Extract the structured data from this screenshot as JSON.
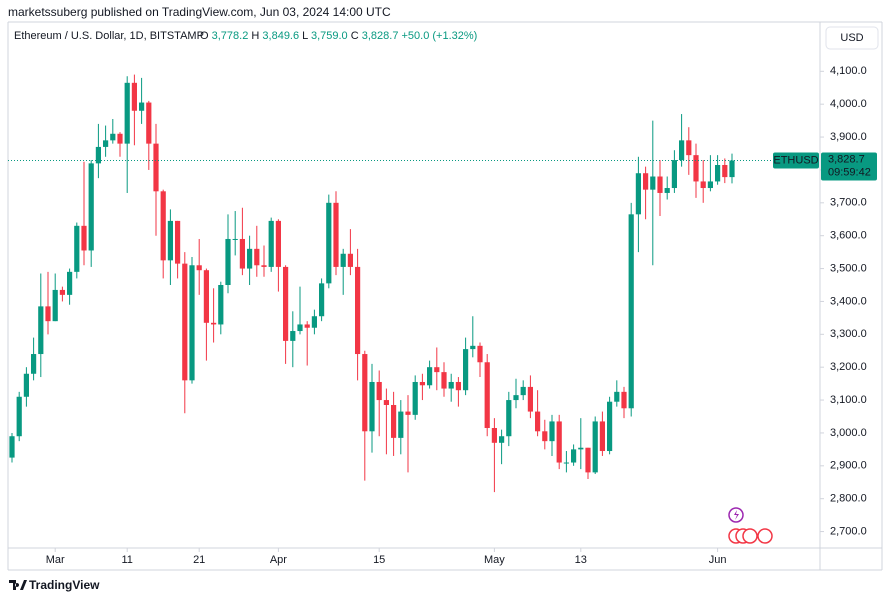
{
  "header": {
    "byline": "marketssuberg published on TradingView.com, Jun 03, 2024 14:00 UTC"
  },
  "footer": {
    "brand": "TradingView"
  },
  "chart_data": {
    "type": "candlestick",
    "title": "Ethereum / U.S. Dollar, 1D, BITSTAMP",
    "currency": "USD",
    "legend": {
      "o_label": "O",
      "o": "3,778.2",
      "h_label": "H",
      "h": "3,849.6",
      "l_label": "L",
      "l": "3,759.0",
      "c_label": "C",
      "c": "3,828.7",
      "change": "+50.0 (+1.32%)"
    },
    "price_tag": {
      "symbol": "ETHUSD",
      "price": "3,828.7",
      "countdown": "09:59:42"
    },
    "up_color": "#089981",
    "down_color": "#f23645",
    "categories": [
      "Feb 24",
      "Feb 25",
      "Feb 26",
      "Feb 27",
      "Feb 28",
      "Feb 29",
      "Mar 1",
      "Mar 2",
      "Mar 3",
      "Mar 4",
      "Mar 5",
      "Mar 6",
      "Mar 7",
      "Mar 8",
      "Mar 9",
      "Mar 10",
      "Mar 11",
      "Mar 12",
      "Mar 13",
      "Mar 14",
      "Mar 15",
      "Mar 16",
      "Mar 17",
      "Mar 18",
      "Mar 19",
      "Mar 20",
      "Mar 21",
      "Mar 22",
      "Mar 23",
      "Mar 24",
      "Mar 25",
      "Mar 26",
      "Mar 27",
      "Mar 28",
      "Mar 29",
      "Mar 30",
      "Mar 31",
      "Apr 1",
      "Apr 2",
      "Apr 3",
      "Apr 4",
      "Apr 5",
      "Apr 6",
      "Apr 7",
      "Apr 8",
      "Apr 9",
      "Apr 10",
      "Apr 11",
      "Apr 12",
      "Apr 13",
      "Apr 14",
      "Apr 15",
      "Apr 16",
      "Apr 17",
      "Apr 18",
      "Apr 19",
      "Apr 20",
      "Apr 21",
      "Apr 22",
      "Apr 23",
      "Apr 24",
      "Apr 25",
      "Apr 26",
      "Apr 27",
      "Apr 28",
      "Apr 29",
      "Apr 30",
      "May 1",
      "May 2",
      "May 3",
      "May 4",
      "May 5",
      "May 6",
      "May 7",
      "May 8",
      "May 9",
      "May 10",
      "May 11",
      "May 12",
      "May 13",
      "May 14",
      "May 15",
      "May 16",
      "May 17",
      "May 18",
      "May 19",
      "May 20",
      "May 21",
      "May 22",
      "May 23",
      "May 24",
      "May 25",
      "May 26",
      "May 27",
      "May 28",
      "May 29",
      "May 30",
      "May 31",
      "Jun 1",
      "Jun 2",
      "Jun 3"
    ],
    "open": [
      2925,
      2990,
      3110,
      3180,
      3240,
      3385,
      3340,
      3435,
      3420,
      3490,
      3630,
      3555,
      3820,
      3870,
      3890,
      3910,
      3880,
      4065,
      3980,
      4005,
      3880,
      3735,
      3525,
      3645,
      3515,
      3160,
      3510,
      3495,
      3335,
      3330,
      3450,
      3590,
      3590,
      3500,
      3560,
      3510,
      3505,
      3645,
      3505,
      3280,
      3310,
      3330,
      3320,
      3355,
      3455,
      3700,
      3505,
      3545,
      3505,
      3240,
      3005,
      3155,
      3100,
      3085,
      2985,
      3065,
      3055,
      3155,
      3145,
      3200,
      3185,
      3135,
      3155,
      3130,
      3255,
      3265,
      3215,
      3015,
      2970,
      2990,
      3100,
      3115,
      3140,
      3065,
      3005,
      2975,
      3035,
      2910,
      2910,
      2950,
      2955,
      2880,
      3035,
      2945,
      3095,
      3125,
      3075,
      3665,
      3790,
      3740,
      3780,
      3730,
      3745,
      3830,
      3890,
      3845,
      3765,
      3745,
      3765,
      3815,
      3778.2
    ],
    "high": [
      3000,
      3125,
      3200,
      3290,
      3485,
      3490,
      3485,
      3445,
      3500,
      3640,
      3825,
      3830,
      3940,
      3935,
      3955,
      3915,
      4085,
      4090,
      4080,
      4010,
      3940,
      3740,
      3680,
      3645,
      3550,
      3535,
      3590,
      3500,
      3440,
      3460,
      3665,
      3675,
      3685,
      3600,
      3630,
      3570,
      3655,
      3650,
      3510,
      3370,
      3445,
      3340,
      3375,
      3470,
      3725,
      3735,
      3560,
      3620,
      3560,
      3250,
      3210,
      3190,
      3135,
      3125,
      3100,
      3115,
      3175,
      3180,
      3220,
      3260,
      3215,
      3180,
      3170,
      3290,
      3355,
      3275,
      3240,
      3045,
      3010,
      3125,
      3165,
      3160,
      3175,
      3130,
      3040,
      3055,
      3055,
      2945,
      2965,
      3045,
      2955,
      3050,
      3065,
      3110,
      3160,
      3140,
      3700,
      3840,
      3810,
      3950,
      3830,
      3780,
      3860,
      3970,
      3930,
      3880,
      3830,
      3845,
      3845,
      3835,
      3849.6
    ],
    "low": [
      2910,
      2975,
      3080,
      3160,
      3170,
      3300,
      3340,
      3400,
      3390,
      3470,
      3510,
      3505,
      3775,
      3840,
      3880,
      3840,
      3730,
      3875,
      3940,
      3800,
      3600,
      3470,
      3450,
      3470,
      3060,
      3150,
      3420,
      3220,
      3275,
      3300,
      3425,
      3540,
      3480,
      3450,
      3475,
      3475,
      3490,
      3430,
      3210,
      3200,
      3300,
      3205,
      3300,
      3340,
      3440,
      3480,
      3420,
      3480,
      3160,
      2855,
      2940,
      2990,
      2935,
      2930,
      2935,
      2880,
      3040,
      3100,
      3135,
      3130,
      3110,
      3095,
      3080,
      3115,
      3230,
      3170,
      2990,
      2820,
      2905,
      2960,
      3075,
      3100,
      3045,
      2990,
      2950,
      2930,
      2890,
      2880,
      2900,
      2890,
      2860,
      2875,
      2930,
      2935,
      3080,
      3045,
      3050,
      3550,
      3650,
      3510,
      3660,
      3710,
      3730,
      3810,
      3785,
      3715,
      3700,
      3735,
      3755,
      3760,
      3759.0
    ],
    "close": [
      2990,
      3110,
      3180,
      3240,
      3385,
      3340,
      3435,
      3420,
      3490,
      3630,
      3555,
      3820,
      3870,
      3890,
      3910,
      3880,
      4065,
      3980,
      4005,
      3880,
      3735,
      3525,
      3645,
      3515,
      3160,
      3510,
      3495,
      3335,
      3330,
      3450,
      3590,
      3590,
      3500,
      3560,
      3510,
      3505,
      3645,
      3505,
      3280,
      3310,
      3330,
      3320,
      3355,
      3455,
      3700,
      3505,
      3545,
      3505,
      3240,
      3005,
      3155,
      3100,
      3085,
      2985,
      3065,
      3055,
      3155,
      3145,
      3200,
      3185,
      3135,
      3155,
      3130,
      3255,
      3265,
      3215,
      3015,
      2970,
      2990,
      3100,
      3115,
      3140,
      3065,
      3005,
      2975,
      3035,
      2910,
      2910,
      2950,
      2955,
      2880,
      3035,
      2945,
      3095,
      3125,
      3075,
      3665,
      3790,
      3740,
      3780,
      3730,
      3745,
      3830,
      3890,
      3845,
      3765,
      3745,
      3765,
      3815,
      3778.2,
      3828.7
    ],
    "ylim": [
      2650,
      4250
    ],
    "yticks": [
      {
        "value": 2700,
        "label": "2,700.0"
      },
      {
        "value": 2800,
        "label": "2,800.0"
      },
      {
        "value": 2900,
        "label": "2,900.0"
      },
      {
        "value": 3000,
        "label": "3,000.0"
      },
      {
        "value": 3100,
        "label": "3,100.0"
      },
      {
        "value": 3200,
        "label": "3,200.0"
      },
      {
        "value": 3300,
        "label": "3,300.0"
      },
      {
        "value": 3400,
        "label": "3,400.0"
      },
      {
        "value": 3500,
        "label": "3,500.0"
      },
      {
        "value": 3600,
        "label": "3,600.0"
      },
      {
        "value": 3700,
        "label": "3,700.0"
      },
      {
        "value": 3800,
        "label": "3,800.0"
      },
      {
        "value": 3900,
        "label": "3,900.0"
      },
      {
        "value": 4000,
        "label": "4,000.0"
      },
      {
        "value": 4100,
        "label": "4,100.0"
      }
    ],
    "xticks": [
      {
        "value": "Mar 1",
        "label": "Mar"
      },
      {
        "value": "Mar 11",
        "label": "11"
      },
      {
        "value": "Mar 21",
        "label": "21"
      },
      {
        "value": "Apr 1",
        "label": "Apr"
      },
      {
        "value": "Apr 15",
        "label": "15"
      },
      {
        "value": "May 1",
        "label": "May"
      },
      {
        "value": "May 13",
        "label": "13"
      },
      {
        "value": "Jun 1",
        "label": "Jun"
      }
    ],
    "grid": false
  }
}
